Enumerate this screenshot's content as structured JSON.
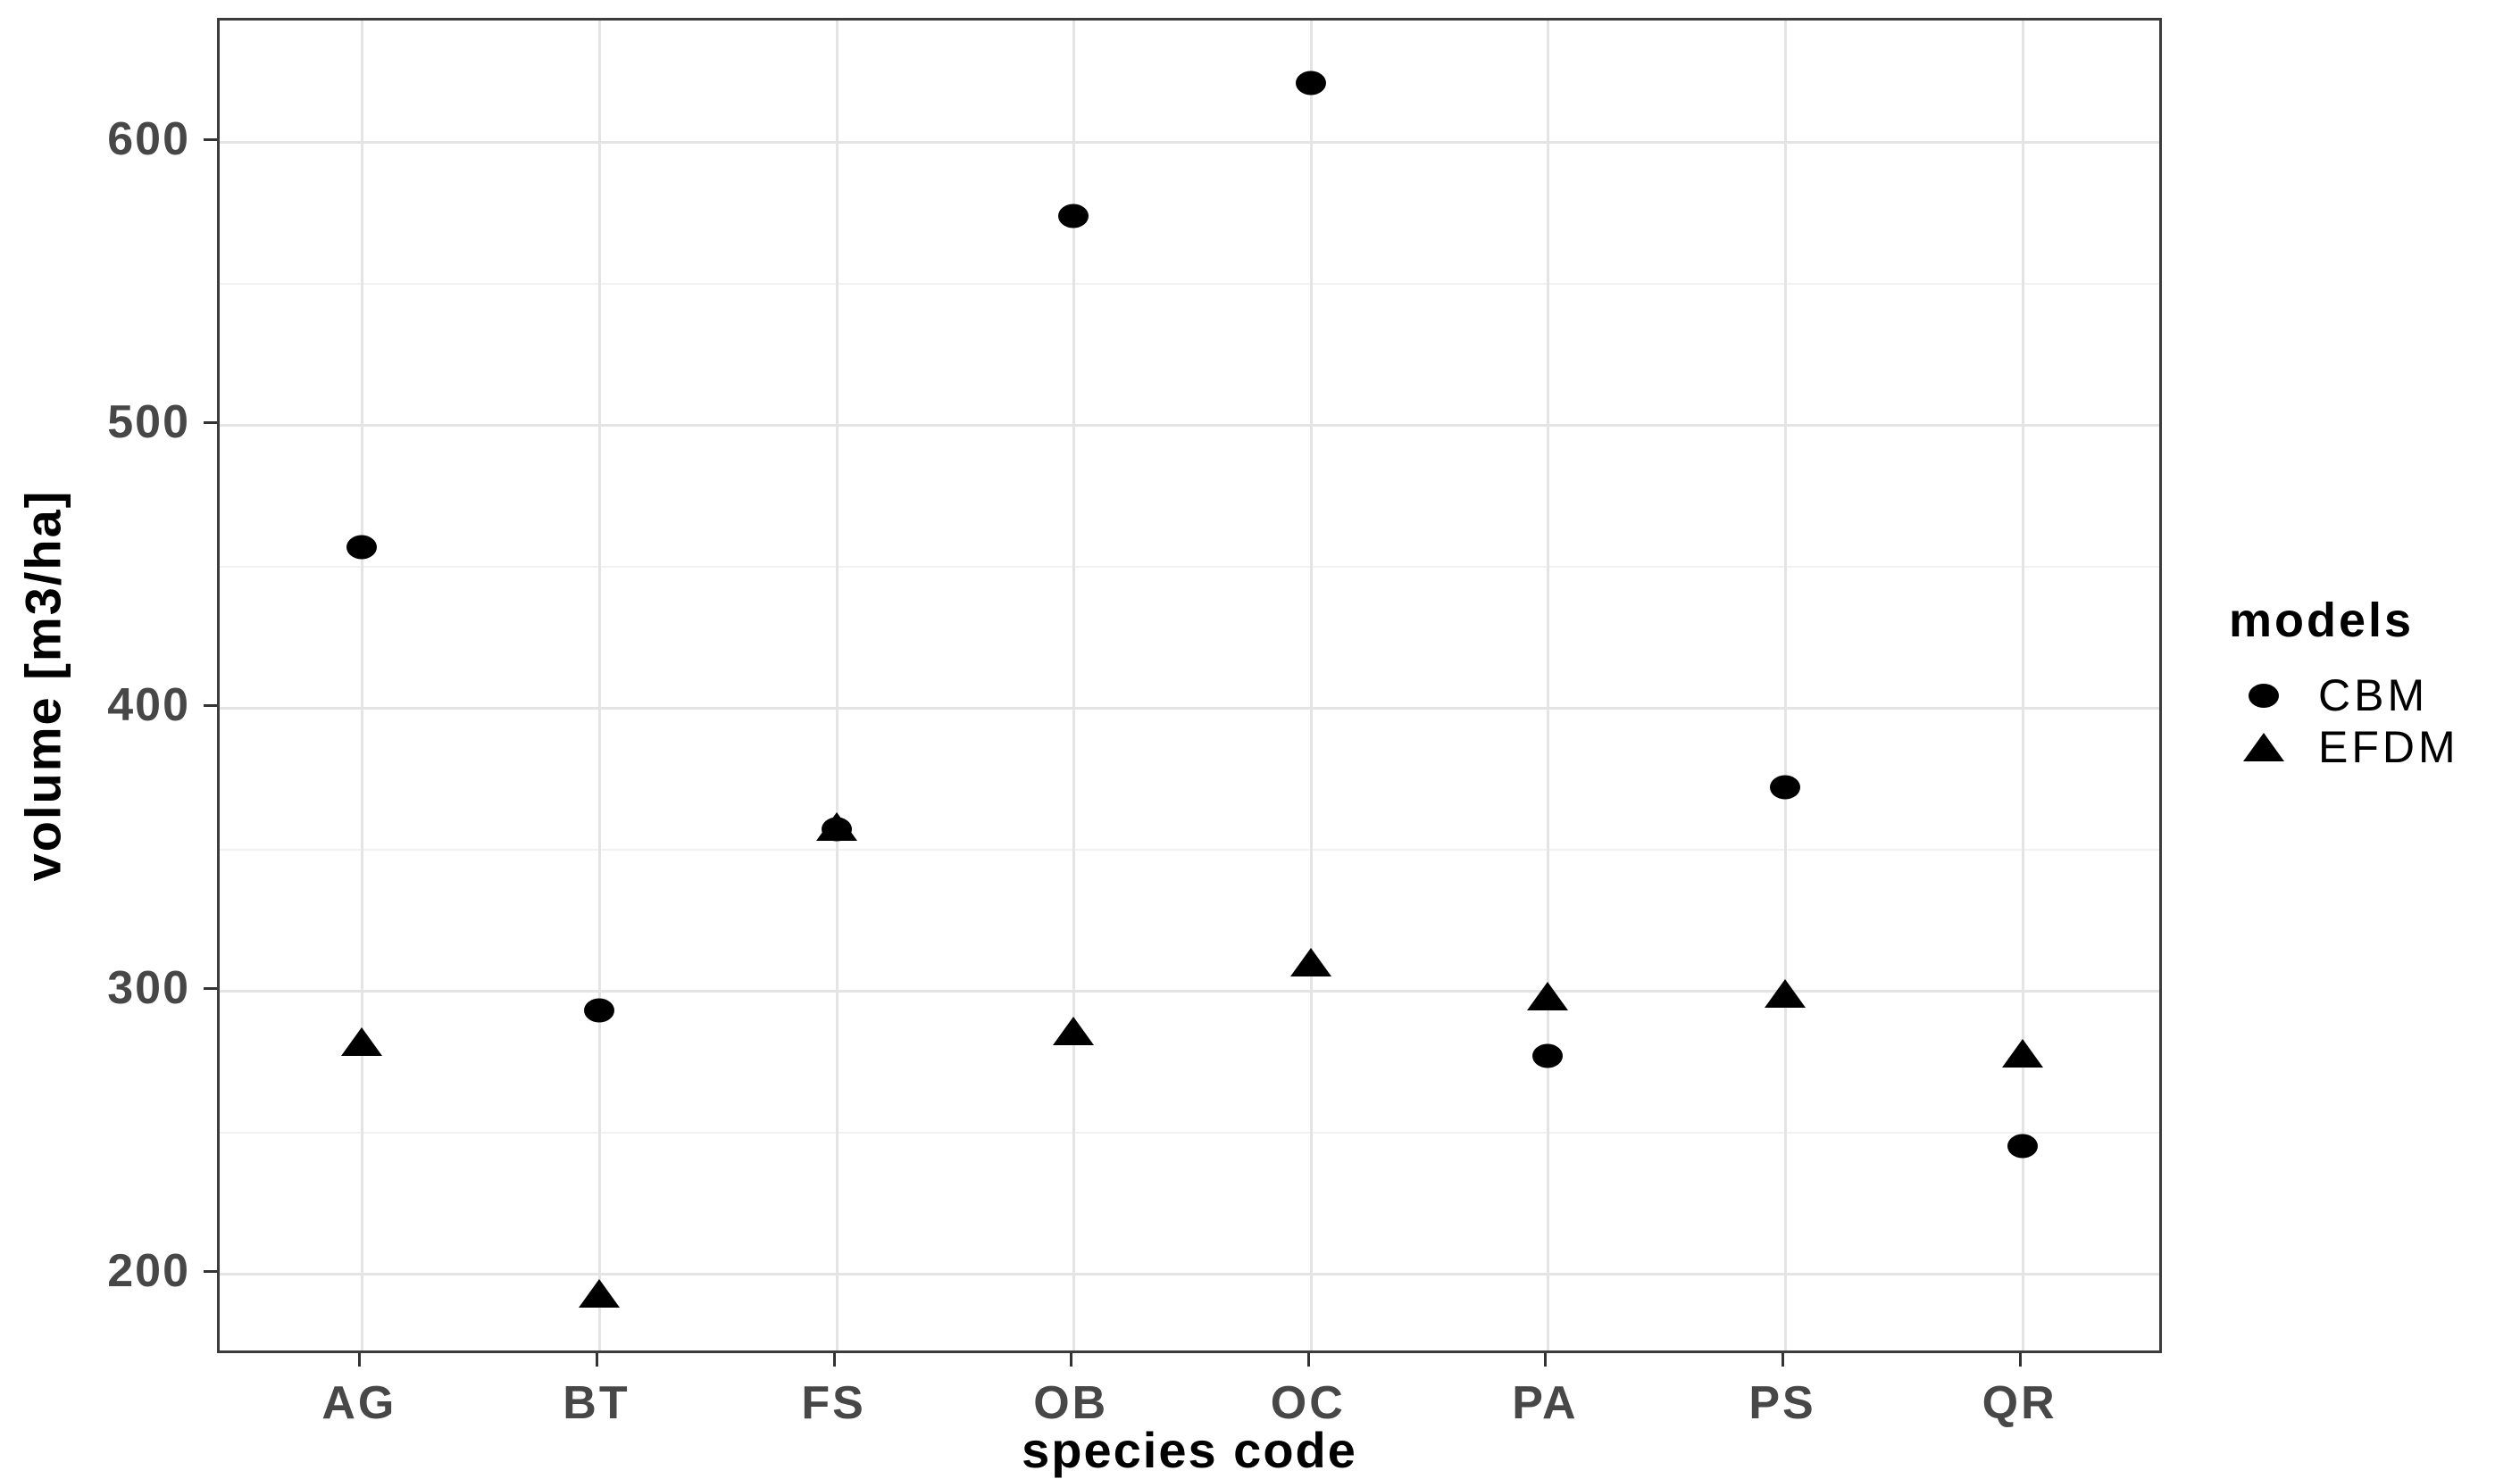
{
  "chart_data": {
    "type": "scatter",
    "title": "",
    "xlabel": "species code",
    "ylabel": "volume [m3/ha]",
    "categories": [
      "AG",
      "BT",
      "FS",
      "OB",
      "OC",
      "PA",
      "PS",
      "QR"
    ],
    "series": [
      {
        "name": "CBM",
        "marker": "circle",
        "values": [
          457,
          293,
          357,
          574,
          621,
          277,
          372,
          245
        ]
      },
      {
        "name": "EFDM",
        "marker": "triangle",
        "values": [
          282,
          193,
          358,
          286,
          310,
          298,
          299,
          278
        ]
      }
    ],
    "ylim": [
      171,
      643
    ],
    "y_ticks": [
      200,
      300,
      400,
      500,
      600
    ],
    "y_minor": [
      250,
      350,
      450,
      550
    ],
    "grid": "on",
    "legend_title": "models",
    "legend_position": "right"
  },
  "legend": {
    "title": "models",
    "items": [
      {
        "label": "CBM",
        "marker": "circle-marker"
      },
      {
        "label": "EFDM",
        "marker": "triangle-marker"
      }
    ]
  },
  "colors": {
    "background": "#ffffff",
    "marker": "#000000",
    "tick_label": "#474747",
    "axis_title": "#000000",
    "panel_border": "#3c3c3c",
    "grid_major": "#e4e4e4",
    "grid_minor": "#f1f1f1"
  }
}
